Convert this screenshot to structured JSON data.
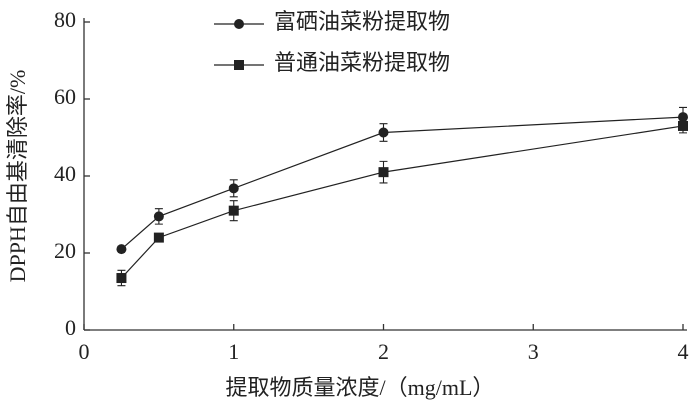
{
  "chart_data": {
    "type": "line",
    "x_label": "提取物质量浓度/（mg/mL）",
    "y_label": "DPPH自由基清除率/%",
    "x": [
      0.25,
      0.5,
      1,
      2,
      4
    ],
    "series": [
      {
        "name": "富硒油菜粉提取物",
        "color": "#222222",
        "marker": "circle",
        "values": [
          21,
          29.5,
          36.8,
          51.3,
          55.3
        ],
        "errors": [
          0.6,
          2,
          2.2,
          2.3,
          2.5
        ]
      },
      {
        "name": "普通油菜粉提取物",
        "color": "#222222",
        "marker": "square",
        "values": [
          13.5,
          24,
          31,
          41,
          53
        ],
        "errors": [
          2,
          1,
          2.6,
          2.8,
          1.8
        ]
      }
    ],
    "xlim": [
      0,
      4
    ],
    "xticks": [
      0,
      1,
      2,
      3,
      4
    ],
    "ylim": [
      0,
      80
    ],
    "yticks": [
      0,
      20,
      40,
      60,
      80
    ],
    "legend": "upper left",
    "grid": false
  }
}
